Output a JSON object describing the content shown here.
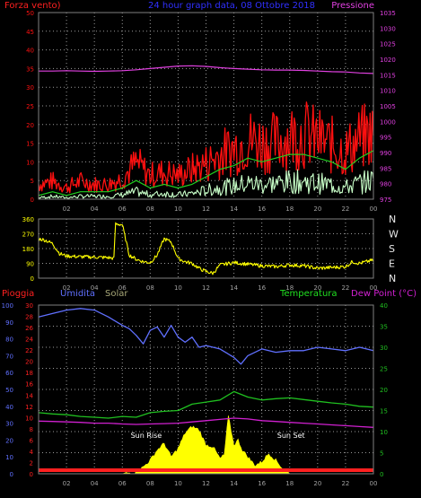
{
  "colors": {
    "background": "#000000",
    "axis": "#808080",
    "grid": "#9a9a9a",
    "wind": "#ff1010",
    "gust": "#ff1010",
    "avg_wind": "#20d020",
    "wind_base": "#c8ffc8",
    "pressure": "#e040e0",
    "direction": "#ffff00",
    "rain": "#ff2020",
    "humidity": "#6070ff",
    "solar": "#ffff00",
    "temperature": "#20c020",
    "dew_point": "#d020d0",
    "top_title": "#3030ff",
    "temp_label": "#20e020"
  },
  "chart_data": [
    {
      "type": "line",
      "panel": "wind-pressure",
      "title": "24 hour graph data, 08 Ottobre 2018",
      "left_axis_label": "Forza vento)",
      "right_axis_label": "Pressione",
      "left_ticks": [
        "0",
        "5",
        "10",
        "15",
        "20",
        "25",
        "30",
        "35",
        "40",
        "45",
        "50"
      ],
      "right_ticks": [
        "975",
        "980",
        "985",
        "990",
        "995",
        "1000",
        "1005",
        "1010",
        "1015",
        "1020",
        "1025",
        "1030",
        "1035"
      ],
      "ylim_left": [
        0,
        50
      ],
      "ylim_right": [
        975,
        1035
      ],
      "grid": true,
      "series": [
        {
          "name": "Pressione",
          "x": [
            0,
            1,
            2,
            3,
            4,
            5,
            6,
            7,
            8,
            9,
            10,
            11,
            12,
            13,
            14,
            15,
            16,
            17,
            18,
            19,
            20,
            21,
            22,
            23,
            24
          ],
          "values": [
            1016.2,
            1016.2,
            1016.3,
            1016.2,
            1016.1,
            1016.2,
            1016.3,
            1016.6,
            1017.0,
            1017.4,
            1017.8,
            1017.9,
            1017.7,
            1017.3,
            1017.0,
            1016.8,
            1016.6,
            1016.5,
            1016.5,
            1016.4,
            1016.2,
            1016.0,
            1015.9,
            1015.6,
            1015.4
          ]
        },
        {
          "name": "gust",
          "x": [
            0,
            1,
            2,
            3,
            4,
            5,
            6,
            7,
            8,
            9,
            10,
            11,
            12,
            13,
            14,
            15,
            16,
            17,
            18,
            19,
            20,
            21,
            22,
            23,
            24
          ],
          "values": [
            5,
            6,
            4,
            6,
            5,
            5,
            7,
            12,
            8,
            9,
            8,
            10,
            12,
            15,
            17,
            20,
            19,
            19,
            21,
            22,
            20,
            18,
            16,
            20,
            22
          ]
        },
        {
          "name": "average",
          "x": [
            0,
            1,
            2,
            3,
            4,
            5,
            6,
            7,
            8,
            9,
            10,
            11,
            12,
            13,
            14,
            15,
            16,
            17,
            18,
            19,
            20,
            21,
            22,
            23,
            24
          ],
          "values": [
            1,
            2,
            1,
            2,
            2,
            2,
            3,
            5,
            3,
            4,
            3,
            4,
            6,
            8,
            9,
            11,
            10,
            11,
            12,
            12,
            11,
            10,
            8,
            11,
            13
          ]
        }
      ]
    },
    {
      "type": "line",
      "panel": "wind-direction",
      "left_ticks": [
        "0",
        "90",
        "180",
        "270",
        "360"
      ],
      "right_ticks": [
        "N",
        "W",
        "S",
        "E",
        "N"
      ],
      "ylim": [
        0,
        360
      ],
      "grid": true,
      "series": [
        {
          "name": "direction",
          "x": [
            0,
            0.5,
            1,
            1.5,
            2,
            3,
            4,
            5,
            5.4,
            5.5,
            6,
            6.5,
            7,
            7.5,
            8,
            8.5,
            9,
            9.5,
            10,
            10.5,
            11,
            11.5,
            12,
            12.5,
            13,
            14,
            15,
            16,
            17,
            18,
            19,
            20,
            21,
            22,
            22.5,
            23,
            24
          ],
          "values": [
            240,
            230,
            210,
            150,
            135,
            130,
            128,
            125,
            120,
            330,
            325,
            140,
            115,
            100,
            95,
            140,
            240,
            220,
            120,
            100,
            90,
            60,
            40,
            30,
            80,
            95,
            85,
            75,
            70,
            80,
            75,
            60,
            65,
            70,
            100,
            90,
            110
          ]
        }
      ]
    },
    {
      "type": "line",
      "panel": "weather",
      "labels": {
        "rain": "Pioggia",
        "humidity": "Umidita",
        "solar": "Solar",
        "temperature": "Temperatura",
        "dew_point": "Dew Point (°C)"
      },
      "annotations": [
        "Sun Rise",
        "Sun Set"
      ],
      "humidity_ticks": [
        "0",
        "10",
        "20",
        "30",
        "40",
        "50",
        "60",
        "70",
        "80",
        "90",
        "100"
      ],
      "rain_ticks": [
        "0",
        "2",
        "4",
        "6",
        "8",
        "10",
        "12",
        "14",
        "16",
        "18",
        "20",
        "22",
        "24",
        "26",
        "28",
        "30"
      ],
      "temp_ticks": [
        "0",
        "5",
        "10",
        "15",
        "20",
        "25",
        "30",
        "35",
        "40"
      ],
      "ylim_humidity": [
        0,
        100
      ],
      "ylim_rain": [
        0,
        30
      ],
      "ylim_temp": [
        0,
        40
      ],
      "grid": true,
      "series": [
        {
          "name": "Umidita",
          "x": [
            0,
            1,
            2,
            3,
            4,
            5,
            6,
            6.5,
            7,
            7.5,
            8,
            8.5,
            9,
            9.5,
            10,
            10.5,
            11,
            11.5,
            12,
            13,
            14,
            14.5,
            15,
            16,
            17,
            18,
            19,
            20,
            21,
            22,
            23,
            24
          ],
          "values": [
            93,
            95,
            97,
            98,
            97,
            93,
            88,
            86,
            82,
            77,
            85,
            87,
            81,
            88,
            81,
            78,
            81,
            75,
            76,
            74,
            69,
            65,
            70,
            74,
            72,
            73,
            73,
            75,
            74,
            73,
            75,
            73
          ]
        },
        {
          "name": "Temperatura",
          "x": [
            0,
            1,
            2,
            3,
            4,
            5,
            6,
            7,
            8,
            9,
            10,
            11,
            12,
            13,
            14,
            15,
            16,
            17,
            18,
            19,
            20,
            21,
            22,
            23,
            24
          ],
          "values": [
            14.5,
            14.2,
            14.0,
            13.6,
            13.4,
            13.2,
            13.6,
            13.4,
            14.5,
            14.8,
            15.0,
            16.5,
            17.0,
            17.5,
            19.5,
            18.2,
            17.5,
            17.8,
            18.0,
            17.6,
            17.2,
            16.8,
            16.5,
            16.0,
            15.8
          ]
        },
        {
          "name": "Dew Point",
          "x": [
            0,
            1,
            2,
            3,
            4,
            5,
            6,
            7,
            8,
            9,
            10,
            11,
            12,
            13,
            14,
            15,
            16,
            17,
            18,
            19,
            20,
            21,
            22,
            23,
            24
          ],
          "values": [
            12.5,
            12.4,
            12.3,
            12.2,
            12.0,
            12.0,
            11.8,
            11.7,
            11.8,
            11.9,
            12.0,
            12.3,
            12.6,
            12.9,
            13.2,
            13.0,
            12.6,
            12.4,
            12.2,
            12.0,
            11.8,
            11.6,
            11.4,
            11.2,
            11.0
          ]
        },
        {
          "name": "Rain",
          "x": [
            0,
            24
          ],
          "values": [
            0,
            0
          ]
        },
        {
          "name": "Solar",
          "x": [
            0,
            6,
            7,
            7.5,
            8,
            8.5,
            9,
            9.5,
            10,
            10.5,
            11,
            11.5,
            12,
            12.5,
            13,
            13.3,
            13.6,
            14,
            14.3,
            14.6,
            15,
            15.5,
            16,
            16.5,
            17,
            17.5,
            18,
            24
          ],
          "values": [
            0,
            0,
            1,
            4,
            8,
            14,
            18,
            10,
            15,
            24,
            28,
            26,
            17,
            16,
            9,
            11,
            34,
            17,
            20,
            14,
            10,
            5,
            7,
            12,
            8,
            3,
            0,
            0
          ]
        }
      ]
    }
  ],
  "time_ticks": [
    "02",
    "04",
    "06",
    "08",
    "10",
    "12",
    "14",
    "16",
    "18",
    "20",
    "22",
    "00"
  ]
}
